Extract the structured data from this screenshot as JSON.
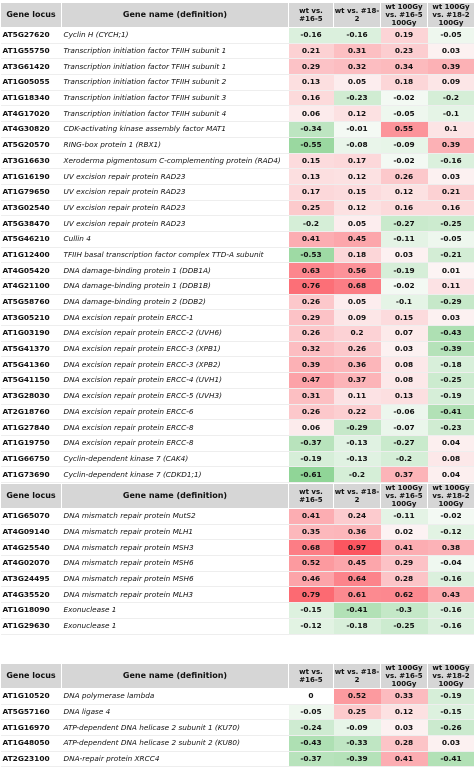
{
  "header": {
    "locus": "Gene locus",
    "name": "Gene name (definition)",
    "c1": "wt vs. #16-5",
    "c2": "wt vs. #18-2",
    "c3": "wt 100Gy vs. #16-5 100Gy",
    "c4": "wt 100Gy vs. #18-2 100Gy"
  },
  "sections": [
    {
      "rows": [
        {
          "locus": "AT5G27620",
          "name": "Cyclin H (CYCH;1)",
          "v": [
            "-0.16",
            "-0.16",
            "0.19",
            "-0.05"
          ]
        },
        {
          "locus": "AT1G55750",
          "name": "Transcription initiation factor TFIIH subunit 1",
          "v": [
            "0.21",
            "0.31",
            "0.23",
            "0.03"
          ]
        },
        {
          "locus": "AT3G61420",
          "name": "Transcription initiation factor TFIIH subunit 1",
          "v": [
            "0.29",
            "0.32",
            "0.34",
            "0.39"
          ]
        },
        {
          "locus": "AT1G05055",
          "name": "Transcription initiation factor TFIIH subunit 2",
          "v": [
            "0.13",
            "0.05",
            "0.18",
            "0.09"
          ]
        },
        {
          "locus": "AT1G18340",
          "name": "Transcription initiation factor TFIIH subunit 3",
          "v": [
            "0.16",
            "-0.23",
            "-0.02",
            "-0.2"
          ]
        },
        {
          "locus": "AT4G17020",
          "name": "Transcription initiation factor TFIIH subunit 4",
          "v": [
            "0.06",
            "0.12",
            "-0.05",
            "-0.1"
          ]
        },
        {
          "locus": "AT4G30820",
          "name": "CDK-activating kinase assembly factor MAT1",
          "v": [
            "-0.34",
            "-0.01",
            "0.55",
            "0.1"
          ]
        },
        {
          "locus": "AT5G20570",
          "name": "RING-box protein 1 (RBX1)",
          "v": [
            "-0.55",
            "-0.08",
            "-0.09",
            "0.39"
          ]
        },
        {
          "locus": "AT3G16630",
          "name": "Xeroderma pigmentosum C-complementing protein (RAD4)",
          "v": [
            "0.15",
            "0.17",
            "-0.02",
            "-0.16"
          ]
        },
        {
          "locus": "AT1G16190",
          "name": "UV excision repair protein RAD23",
          "v": [
            "0.13",
            "0.12",
            "0.26",
            "0.03"
          ]
        },
        {
          "locus": "AT1G79650",
          "name": "UV excision repair protein RAD23",
          "v": [
            "0.17",
            "0.15",
            "0.12",
            "0.21"
          ]
        },
        {
          "locus": "AT3G02540",
          "name": "UV excision repair protein RAD23",
          "v": [
            "0.25",
            "0.12",
            "0.16",
            "0.16"
          ]
        },
        {
          "locus": "AT5G38470",
          "name": "UV excision repair protein RAD23",
          "v": [
            "-0.2",
            "0.05",
            "-0.27",
            "-0.25"
          ]
        },
        {
          "locus": "AT5G46210",
          "name": "Cullin 4",
          "v": [
            "0.41",
            "0.45",
            "-0.11",
            "-0.05"
          ]
        },
        {
          "locus": "AT1G12400",
          "name": "TFIIH basal transcription factor complex TTD-A subunit",
          "v": [
            "-0.53",
            "0.18",
            "0.03",
            "-0.21"
          ]
        },
        {
          "locus": "AT4G05420",
          "name": "DNA damage-binding protein 1 (DDB1A)",
          "v": [
            "0.63",
            "0.56",
            "-0.19",
            "0.01"
          ]
        },
        {
          "locus": "AT4G21100",
          "name": "DNA damage-binding protein 1 (DDB1B)",
          "v": [
            "0.76",
            "0.68",
            "-0.02",
            "0.11"
          ]
        },
        {
          "locus": "AT5G58760",
          "name": "DNA damage-binding protein 2 (DDB2)",
          "v": [
            "0.26",
            "0.05",
            "-0.1",
            "-0.29"
          ]
        },
        {
          "locus": "AT3G05210",
          "name": "DNA excision repair protein ERCC-1",
          "v": [
            "0.29",
            "0.09",
            "0.15",
            "0.03"
          ]
        },
        {
          "locus": "AT1G03190",
          "name": "DNA excision repair protein ERCC-2 (UVH6)",
          "v": [
            "0.26",
            "0.2",
            "0.07",
            "-0.43"
          ]
        },
        {
          "locus": "AT5G41370",
          "name": "DNA excision repair protein ERCC-3 (XPB1)",
          "v": [
            "0.32",
            "0.26",
            "0.03",
            "-0.39"
          ]
        },
        {
          "locus": "AT5G41360",
          "name": "DNA excision repair protein ERCC-3 (XPB2)",
          "v": [
            "0.39",
            "0.36",
            "0.08",
            "-0.18"
          ]
        },
        {
          "locus": "AT5G41150",
          "name": "DNA excision repair protein ERCC-4 (UVH1)",
          "v": [
            "0.47",
            "0.37",
            "0.08",
            "-0.25"
          ]
        },
        {
          "locus": "AT3G28030",
          "name": "DNA excision repair protein ERCC-5 (UVH3)",
          "v": [
            "0.31",
            "0.11",
            "0.13",
            "-0.19"
          ]
        },
        {
          "locus": "AT2G18760",
          "name": "DNA excision repair protein ERCC-6",
          "v": [
            "0.26",
            "0.22",
            "-0.06",
            "-0.41"
          ]
        },
        {
          "locus": "AT1G27840",
          "name": "DNA excision repair protein ERCC-8",
          "v": [
            "0.06",
            "-0.29",
            "-0.07",
            "-0.23"
          ]
        },
        {
          "locus": "AT1G19750",
          "name": "DNA excision repair protein ERCC-8",
          "v": [
            "-0.37",
            "-0.13",
            "-0.27",
            "0.04"
          ]
        },
        {
          "locus": "AT1G66750",
          "name": "Cyclin-dependent kinase 7 (CAK4)",
          "v": [
            "-0.19",
            "-0.13",
            "-0.2",
            "0.08"
          ]
        },
        {
          "locus": "AT1G73690",
          "name": "Cyclin-dependent kinase 7 (CDKD1;1)",
          "v": [
            "-0.61",
            "-0.2",
            "0.37",
            "0.04"
          ]
        },
        {
          "locus": "AT1G18040",
          "name": "Cyclin-dependent kinase 7 (CDKD1;3)",
          "v": [
            "-0.47",
            "-0.38",
            "0.11",
            "0.01"
          ]
        }
      ]
    },
    {
      "rows": [
        {
          "locus": "AT1G65070",
          "name": "DNA mismatch repair protein MutS2",
          "v": [
            "0.41",
            "0.24",
            "-0.11",
            "-0.02"
          ]
        },
        {
          "locus": "AT4G09140",
          "name": "DNA mismatch repair protein MLH1",
          "v": [
            "0.35",
            "0.36",
            "0.02",
            "-0.12"
          ]
        },
        {
          "locus": "AT4G25540",
          "name": "DNA mismatch repair protein MSH3",
          "v": [
            "0.68",
            "0.97",
            "0.41",
            "0.38"
          ]
        },
        {
          "locus": "AT4G02070",
          "name": "DNA mismatch repair protein MSH6",
          "v": [
            "0.52",
            "0.45",
            "0.29",
            "-0.04"
          ]
        },
        {
          "locus": "AT3G24495",
          "name": "DNA mismatch repair protein MSH6",
          "v": [
            "0.46",
            "0.64",
            "0.28",
            "-0.16"
          ]
        },
        {
          "locus": "AT4G35520",
          "name": "DNA mismatch repair protein MLH3",
          "v": [
            "0.79",
            "0.61",
            "0.62",
            "0.43"
          ]
        },
        {
          "locus": "AT1G18090",
          "name": "Exonuclease 1",
          "v": [
            "-0.15",
            "-0.41",
            "-0.3",
            "-0.16"
          ]
        },
        {
          "locus": "AT1G29630",
          "name": "Exonuclease 1",
          "v": [
            "-0.12",
            "-0.18",
            "-0.25",
            "-0.16"
          ]
        }
      ]
    },
    {
      "rows": [
        {
          "locus": "AT1G10520",
          "name": "DNA polymerase lambda",
          "v": [
            "0",
            "0.52",
            "0.33",
            "-0.19"
          ]
        },
        {
          "locus": "AT5G57160",
          "name": "DNA ligase 4",
          "v": [
            "-0.05",
            "0.25",
            "0.12",
            "-0.15"
          ]
        },
        {
          "locus": "AT1G16970",
          "name": "ATP-dependent DNA helicase 2 subunit 1 (KU70)",
          "v": [
            "-0.24",
            "-0.09",
            "0.03",
            "-0.26"
          ]
        },
        {
          "locus": "AT1G48050",
          "name": "ATP-dependent DNA helicase 2 subunit 2 (KU80)",
          "v": [
            "-0.43",
            "-0.33",
            "0.28",
            "0.03"
          ]
        },
        {
          "locus": "AT2G23100",
          "name": "DNA-repair protein XRCC4",
          "v": [
            "-0.37",
            "-0.39",
            "0.41",
            "-0.41"
          ]
        }
      ]
    }
  ],
  "colors": {
    "header_bg": "#d6d6d6",
    "positive": "#e8344c",
    "negative": "#3fa05e"
  }
}
